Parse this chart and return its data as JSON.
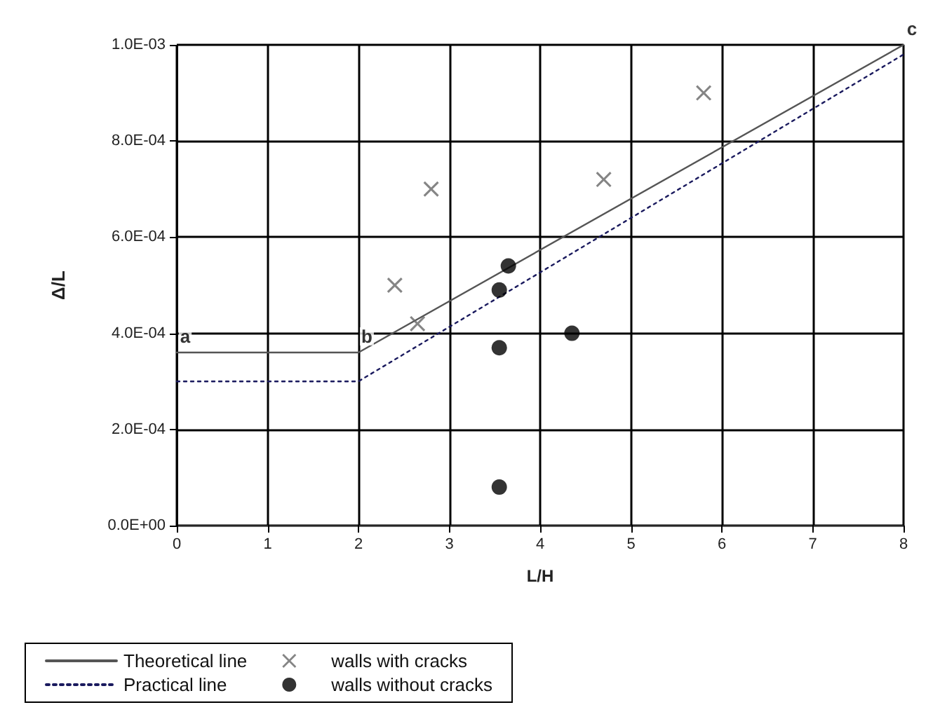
{
  "chart_data": {
    "type": "line",
    "xlabel": "L/H",
    "ylabel": "Δ/L",
    "xlim": [
      0,
      8
    ],
    "xticks": [
      0,
      1,
      2,
      3,
      4,
      5,
      6,
      7,
      8
    ],
    "ylim": [
      0,
      0.001
    ],
    "yticks": [
      {
        "value": 0,
        "label": "0.0E+00"
      },
      {
        "value": 0.0002,
        "label": "2.0E-04"
      },
      {
        "value": 0.0004,
        "label": "4.0E-04"
      },
      {
        "value": 0.0006,
        "label": "6.0E-04"
      },
      {
        "value": 0.0008,
        "label": "8.0E-04"
      },
      {
        "value": 0.001,
        "label": "1.0E-03"
      }
    ],
    "grid": true,
    "legend": "bottom",
    "series": [
      {
        "name": "Theoretical line",
        "color": "#555555",
        "line_style": "solid",
        "marker": "none",
        "x": [
          0,
          2,
          8
        ],
        "values": [
          0.00036,
          0.00036,
          0.001
        ]
      },
      {
        "name": "Practical line",
        "color": "#1a1a5e",
        "line_style": "dotted",
        "marker": "none",
        "x": [
          0,
          2,
          8
        ],
        "values": [
          0.0003,
          0.0003,
          0.00098
        ]
      },
      {
        "name": "walls with cracks",
        "type": "scatter",
        "color": "#666666",
        "marker": "cross",
        "x": [
          2.4,
          2.8,
          2.65,
          4.7,
          5.8
        ],
        "values": [
          0.0005,
          0.0007,
          0.00042,
          0.00072,
          0.0009
        ]
      },
      {
        "name": "walls without cracks",
        "type": "scatter",
        "color": "#000000",
        "marker": "circle",
        "x": [
          3.65,
          3.55,
          3.55,
          4.35,
          3.55
        ],
        "values": [
          0.00054,
          0.00049,
          0.00037,
          0.0004,
          8e-05
        ]
      }
    ],
    "annotations": [
      {
        "text": "a",
        "x": 0,
        "y": 0.00036
      },
      {
        "text": "b",
        "x": 2,
        "y": 0.00036
      },
      {
        "text": "c",
        "x": 8,
        "y": 0.001
      }
    ]
  }
}
